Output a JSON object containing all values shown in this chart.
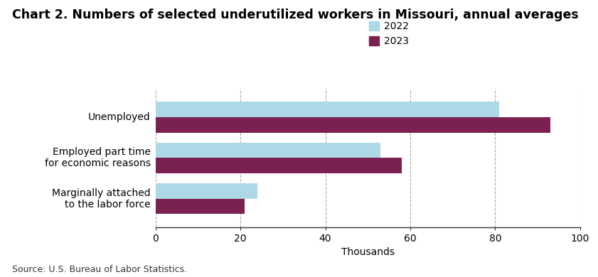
{
  "title": "Chart 2. Numbers of selected underutilized workers in Missouri, annual averages",
  "categories": [
    "Marginally attached\nto the labor force",
    "Employed part time\nfor economic reasons",
    "Unemployed"
  ],
  "values_2022": [
    24,
    53,
    81
  ],
  "values_2023": [
    21,
    58,
    93
  ],
  "color_2022": "#add8e6",
  "color_2023": "#7b2150",
  "xlabel": "Thousands",
  "xlim": [
    0,
    100
  ],
  "xticks": [
    0,
    20,
    40,
    60,
    80,
    100
  ],
  "legend_labels": [
    "2022",
    "2023"
  ],
  "source": "Source: U.S. Bureau of Labor Statistics.",
  "bar_height": 0.38,
  "grid_color": "#aaaaaa",
  "background_color": "#ffffff",
  "title_fontsize": 12.5,
  "axis_fontsize": 10,
  "legend_fontsize": 10,
  "source_fontsize": 9
}
